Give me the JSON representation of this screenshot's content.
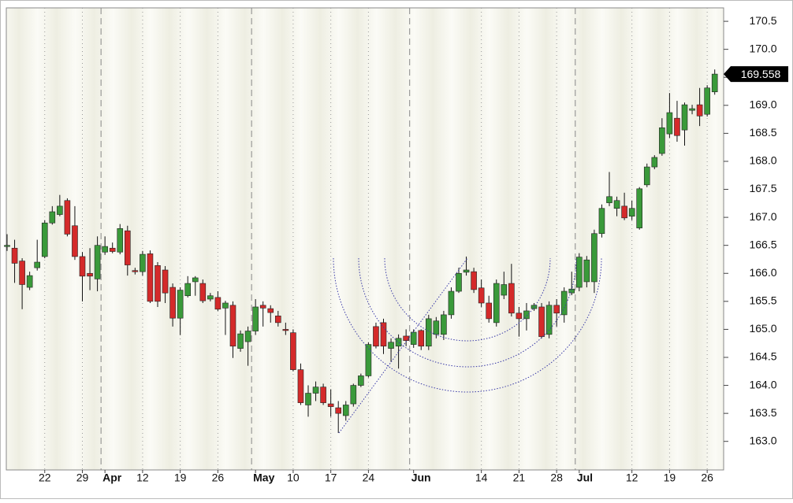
{
  "chart_data": {
    "type": "candlestick",
    "categories": [
      null,
      null,
      null,
      null,
      null,
      "22",
      null,
      null,
      null,
      null,
      "29",
      null,
      null,
      "Apr",
      null,
      null,
      null,
      null,
      "12",
      null,
      null,
      null,
      null,
      "19",
      null,
      null,
      null,
      null,
      "26",
      null,
      null,
      null,
      null,
      "May",
      null,
      null,
      null,
      null,
      "10",
      null,
      null,
      null,
      null,
      "17",
      null,
      null,
      null,
      null,
      "24",
      null,
      null,
      null,
      null,
      null,
      "Jun",
      null,
      null,
      null,
      null,
      null,
      null,
      null,
      null,
      "14",
      null,
      null,
      null,
      null,
      "21",
      null,
      null,
      null,
      null,
      "28",
      null,
      null,
      "Jul",
      null,
      null,
      null,
      null,
      null,
      null,
      "12",
      null,
      null,
      null,
      null,
      "19",
      null,
      null,
      null,
      null,
      "26",
      null
    ],
    "open": [
      166.5,
      166.45,
      166.22,
      165.75,
      166.1,
      166.3,
      166.9,
      167.05,
      167.3,
      166.85,
      166.3,
      166.0,
      165.9,
      166.38,
      166.45,
      166.38,
      166.76,
      166.05,
      166.03,
      166.35,
      166.14,
      166.06,
      165.75,
      165.2,
      165.6,
      165.85,
      165.82,
      165.54,
      165.57,
      165.38,
      165.43,
      164.66,
      164.78,
      164.97,
      165.43,
      165.37,
      165.24,
      165.0,
      164.94,
      164.28,
      163.65,
      163.86,
      163.97,
      163.67,
      163.6,
      163.46,
      163.67,
      164.0,
      164.17,
      165.05,
      165.12,
      164.66,
      164.7,
      164.88,
      164.73,
      164.98,
      164.7,
      164.91,
      164.91,
      165.26,
      165.68,
      166.02,
      166.03,
      165.74,
      165.47,
      165.12,
      165.61,
      165.82,
      165.29,
      165.19,
      165.37,
      165.4,
      164.91,
      165.43,
      165.26,
      165.65,
      165.75,
      165.85,
      165.85,
      166.71,
      167.26,
      167.16,
      167.2,
      167.02,
      166.81,
      167.58,
      167.9,
      168.14,
      168.49,
      168.77,
      168.56,
      168.91,
      169.01,
      168.84,
      169.24
    ],
    "high": [
      166.7,
      166.6,
      166.27,
      166.03,
      166.6,
      166.95,
      167.2,
      167.4,
      167.34,
      167.2,
      166.38,
      166.45,
      166.66,
      166.66,
      166.55,
      166.88,
      166.85,
      166.1,
      166.4,
      166.41,
      166.2,
      166.13,
      165.82,
      165.75,
      165.95,
      165.95,
      165.89,
      165.65,
      165.68,
      165.51,
      165.5,
      164.98,
      165.05,
      165.54,
      165.5,
      165.43,
      165.33,
      165.12,
      165.0,
      164.39,
      164.0,
      164.07,
      164.03,
      163.93,
      163.72,
      163.72,
      164.03,
      164.21,
      164.77,
      165.12,
      165.19,
      164.84,
      164.91,
      165.0,
      165.0,
      165.0,
      165.26,
      165.22,
      165.33,
      165.75,
      166.1,
      166.3,
      166.1,
      165.89,
      165.6,
      165.89,
      166.03,
      166.17,
      165.4,
      165.47,
      165.47,
      165.47,
      165.5,
      165.54,
      165.75,
      166.03,
      166.36,
      166.31,
      166.78,
      167.23,
      167.81,
      167.37,
      167.44,
      167.3,
      167.54,
      167.96,
      168.11,
      168.77,
      169.22,
      169.08,
      169.05,
      169.01,
      169.31,
      169.36,
      169.64
    ],
    "low": [
      166.4,
      165.83,
      165.36,
      165.7,
      166.05,
      166.27,
      166.87,
      167.02,
      166.66,
      166.24,
      165.5,
      165.7,
      165.68,
      166.33,
      166.36,
      166.34,
      165.96,
      165.98,
      165.96,
      165.47,
      165.4,
      165.47,
      165.05,
      164.9,
      165.57,
      165.6,
      165.47,
      165.5,
      165.33,
      164.9,
      164.49,
      164.6,
      164.35,
      164.9,
      165.05,
      165.12,
      165.05,
      164.9,
      164.25,
      163.65,
      163.44,
      163.72,
      163.65,
      163.44,
      163.15,
      163.37,
      163.62,
      163.97,
      164.14,
      164.66,
      164.56,
      164.42,
      164.3,
      164.7,
      164.67,
      164.63,
      164.63,
      164.84,
      164.81,
      165.19,
      165.65,
      165.96,
      165.65,
      165.4,
      165.12,
      165.05,
      165.54,
      165.23,
      164.87,
      164.98,
      165.33,
      164.84,
      164.84,
      165.05,
      165.12,
      165.61,
      165.68,
      165.75,
      165.65,
      166.64,
      167.2,
      167.02,
      166.95,
      166.95,
      166.78,
      167.54,
      167.86,
      168.1,
      168.42,
      168.35,
      168.28,
      168.84,
      168.63,
      168.8,
      169.19
    ],
    "close": [
      166.5,
      166.18,
      165.8,
      165.96,
      166.2,
      166.9,
      167.1,
      167.2,
      166.7,
      166.3,
      165.95,
      165.95,
      166.5,
      166.48,
      166.39,
      166.8,
      166.15,
      166.03,
      166.34,
      165.5,
      165.5,
      165.65,
      165.2,
      165.7,
      165.82,
      165.92,
      165.51,
      165.6,
      165.36,
      165.47,
      164.7,
      164.92,
      164.97,
      165.4,
      165.38,
      165.3,
      165.12,
      164.98,
      164.28,
      163.69,
      163.86,
      163.97,
      163.69,
      163.62,
      163.5,
      163.65,
      164.0,
      164.17,
      164.73,
      164.7,
      164.7,
      164.77,
      164.84,
      164.8,
      164.95,
      164.7,
      165.19,
      165.15,
      165.26,
      165.68,
      166.0,
      166.06,
      165.71,
      165.47,
      165.19,
      165.82,
      165.8,
      165.29,
      165.19,
      165.33,
      165.43,
      164.87,
      165.43,
      165.29,
      165.68,
      165.72,
      166.29,
      166.24,
      166.71,
      167.16,
      167.37,
      167.3,
      166.99,
      167.16,
      167.51,
      167.9,
      168.07,
      168.6,
      168.87,
      168.46,
      169.01,
      168.94,
      168.81,
      169.31,
      169.558
    ],
    "up_color": "#3a9a3a",
    "down_color": "#d42a2a",
    "ylim": [
      162.49,
      170.74
    ],
    "yticks": [
      {
        "value": 163,
        "label": "163.0"
      },
      163.5,
      {
        "value": 164,
        "label": "164.0"
      },
      164.5,
      {
        "value": 165,
        "label": "165.0"
      },
      165.5,
      {
        "value": 166,
        "label": "166.0"
      },
      166.5,
      {
        "value": 167,
        "label": "167.0"
      },
      167.5,
      {
        "value": 168,
        "label": "168.0"
      },
      168.5,
      {
        "value": 169,
        "label": "169.0"
      },
      169.5,
      {
        "value": 170,
        "label": "170.0"
      },
      170.5
    ],
    "y_axis_side": "right"
  }
}
